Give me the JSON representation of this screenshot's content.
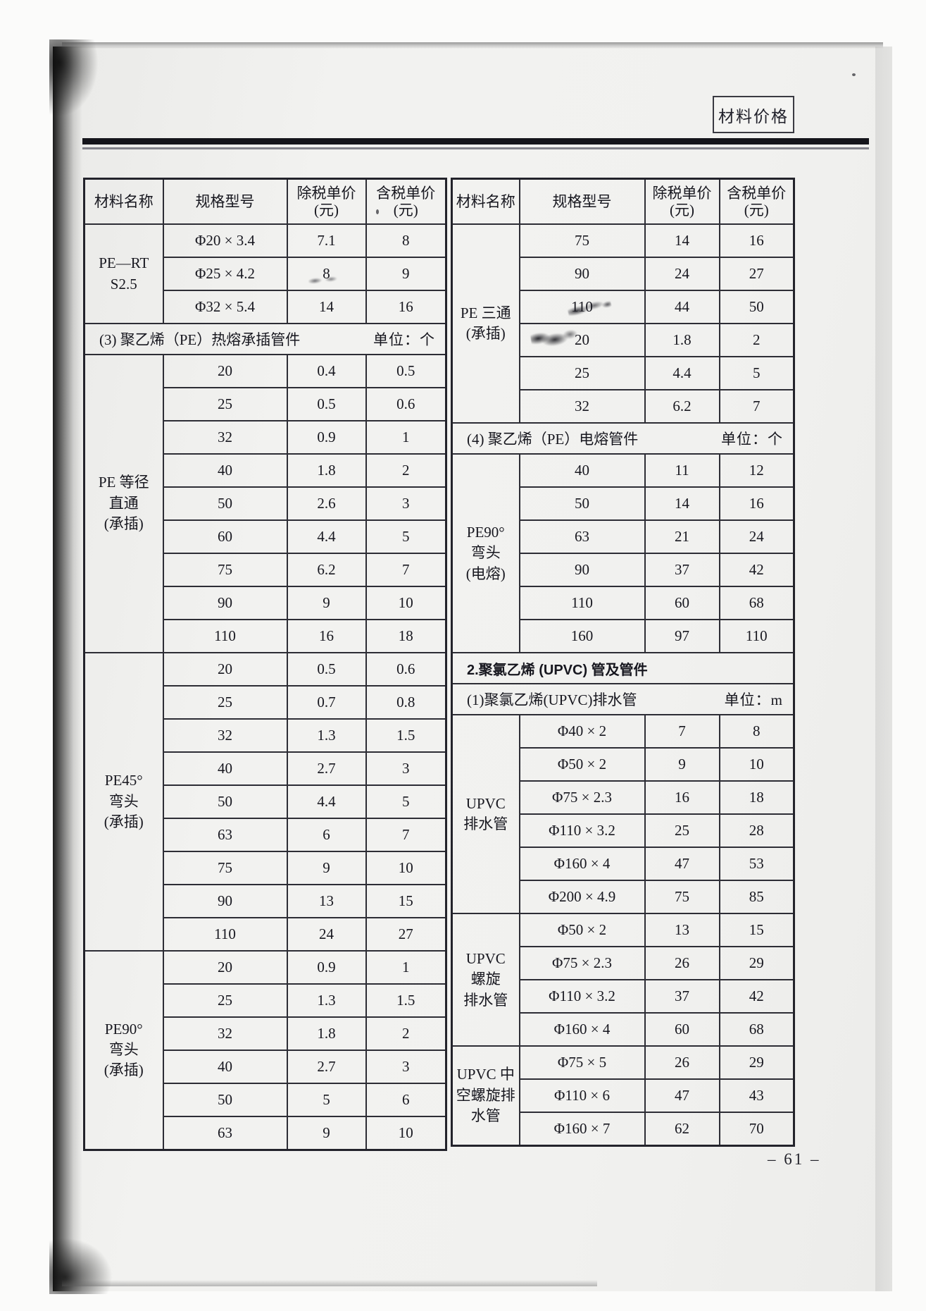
{
  "page_tag": "材料价格",
  "page_number": "– 61 –",
  "columns": [
    "材料名称",
    "规格型号",
    "除税单价\n(元)",
    "含税单价\n(元)"
  ],
  "left_table": {
    "blocks": [
      {
        "type": "group",
        "name": "PE—RT\nS2.5",
        "rows": [
          [
            "Φ20 × 3.4",
            "7.1",
            "8"
          ],
          [
            "Φ25 × 4.2",
            "8",
            "9"
          ],
          [
            "Φ32 × 5.4",
            "14",
            "16"
          ]
        ]
      },
      {
        "type": "section",
        "title": "(3) 聚乙烯（PE）热熔承插管件",
        "unit": "单位：个"
      },
      {
        "type": "group",
        "name": "PE 等径\n直通\n(承插)",
        "rows": [
          [
            "20",
            "0.4",
            "0.5"
          ],
          [
            "25",
            "0.5",
            "0.6"
          ],
          [
            "32",
            "0.9",
            "1"
          ],
          [
            "40",
            "1.8",
            "2"
          ],
          [
            "50",
            "2.6",
            "3"
          ],
          [
            "60",
            "4.4",
            "5"
          ],
          [
            "75",
            "6.2",
            "7"
          ],
          [
            "90",
            "9",
            "10"
          ],
          [
            "110",
            "16",
            "18"
          ]
        ]
      },
      {
        "type": "group",
        "name": "PE45°\n弯头\n(承插)",
        "rows": [
          [
            "20",
            "0.5",
            "0.6"
          ],
          [
            "25",
            "0.7",
            "0.8"
          ],
          [
            "32",
            "1.3",
            "1.5"
          ],
          [
            "40",
            "2.7",
            "3"
          ],
          [
            "50",
            "4.4",
            "5"
          ],
          [
            "63",
            "6",
            "7"
          ],
          [
            "75",
            "9",
            "10"
          ],
          [
            "90",
            "13",
            "15"
          ],
          [
            "110",
            "24",
            "27"
          ]
        ]
      },
      {
        "type": "group",
        "name": "PE90°\n弯头\n(承插)",
        "rows": [
          [
            "20",
            "0.9",
            "1"
          ],
          [
            "25",
            "1.3",
            "1.5"
          ],
          [
            "32",
            "1.8",
            "2"
          ],
          [
            "40",
            "2.7",
            "3"
          ],
          [
            "50",
            "5",
            "6"
          ],
          [
            "63",
            "9",
            "10"
          ]
        ]
      }
    ]
  },
  "right_table": {
    "blocks": [
      {
        "type": "group",
        "name": "PE 三通\n(承插)",
        "rows": [
          [
            "75",
            "14",
            "16"
          ],
          [
            "90",
            "24",
            "27"
          ],
          [
            "110",
            "44",
            "50"
          ],
          [
            "20",
            "1.8",
            "2"
          ],
          [
            "25",
            "4.4",
            "5"
          ],
          [
            "32",
            "6.2",
            "7"
          ]
        ]
      },
      {
        "type": "section",
        "title": "(4) 聚乙烯（PE）电熔管件",
        "unit": "单位：个"
      },
      {
        "type": "group",
        "name": "PE90°\n弯头\n(电熔)",
        "rows": [
          [
            "40",
            "11",
            "12"
          ],
          [
            "50",
            "14",
            "16"
          ],
          [
            "63",
            "21",
            "24"
          ],
          [
            "90",
            "37",
            "42"
          ],
          [
            "110",
            "60",
            "68"
          ],
          [
            "160",
            "97",
            "110"
          ]
        ]
      },
      {
        "type": "section",
        "title": "2.聚氯乙烯 (UPVC) 管及管件",
        "unit": "",
        "bold": true
      },
      {
        "type": "section",
        "title": "(1)聚氯乙烯(UPVC)排水管",
        "unit": "单位：m"
      },
      {
        "type": "group",
        "name": "UPVC\n排水管",
        "rows": [
          [
            "Φ40 × 2",
            "7",
            "8"
          ],
          [
            "Φ50 × 2",
            "9",
            "10"
          ],
          [
            "Φ75 × 2.3",
            "16",
            "18"
          ],
          [
            "Φ110 × 3.2",
            "25",
            "28"
          ],
          [
            "Φ160 × 4",
            "47",
            "53"
          ],
          [
            "Φ200 × 4.9",
            "75",
            "85"
          ]
        ]
      },
      {
        "type": "group",
        "name": "UPVC\n螺旋\n排水管",
        "rows": [
          [
            "Φ50 × 2",
            "13",
            "15"
          ],
          [
            "Φ75 × 2.3",
            "26",
            "29"
          ],
          [
            "Φ110 × 3.2",
            "37",
            "42"
          ],
          [
            "Φ160 × 4",
            "60",
            "68"
          ]
        ]
      },
      {
        "type": "group",
        "name": "UPVC 中\n空螺旋排\n水管",
        "rows": [
          [
            "Φ75 × 5",
            "26",
            "29"
          ],
          [
            "Φ110 × 6",
            "47",
            "43"
          ],
          [
            "Φ160 × 7",
            "62",
            "70"
          ]
        ]
      }
    ]
  }
}
